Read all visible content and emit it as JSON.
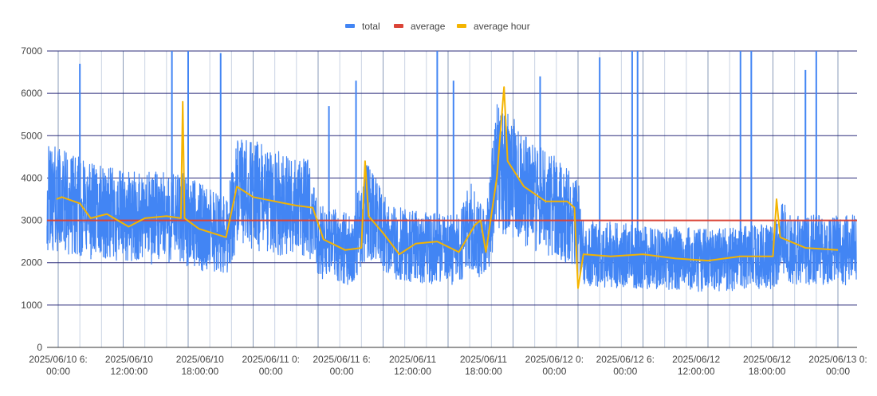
{
  "chart_data": {
    "type": "line",
    "legend": {
      "position": "top",
      "entries": [
        {
          "label": "total",
          "color": "#4285f4"
        },
        {
          "label": "average",
          "color": "#db4437"
        },
        {
          "label": "average hour",
          "color": "#f4b400"
        }
      ]
    },
    "ylim": [
      0,
      7000
    ],
    "yticks": [
      "0",
      "1000",
      "2000",
      "3000",
      "4000",
      "5000",
      "6000",
      "7000"
    ],
    "xlim": [
      "2025-06-10T06:00",
      "2025-06-13T06:00"
    ],
    "xticks": [
      {
        "line1": "2025/06/10 6:",
        "line2": "00:00"
      },
      {
        "line1": "2025/06/10",
        "line2": "12:00:00"
      },
      {
        "line1": "2025/06/10",
        "line2": "18:00:00"
      },
      {
        "line1": "2025/06/11 0:",
        "line2": "00:00"
      },
      {
        "line1": "2025/06/11 6:",
        "line2": "00:00"
      },
      {
        "line1": "2025/06/11",
        "line2": "12:00:00"
      },
      {
        "line1": "2025/06/11",
        "line2": "18:00:00"
      },
      {
        "line1": "2025/06/12 0:",
        "line2": "00:00"
      },
      {
        "line1": "2025/06/12 6:",
        "line2": "00:00"
      },
      {
        "line1": "2025/06/12",
        "line2": "12:00:00"
      },
      {
        "line1": "2025/06/12",
        "line2": "18:00:00"
      },
      {
        "line1": "2025/06/13 0:",
        "line2": "00:00"
      }
    ],
    "grid": "on",
    "series": [
      {
        "name": "total",
        "color": "#4285f4",
        "style": "dense noisy line",
        "base_levels": [
          [
            "2025-06-10T05:50",
            3500
          ],
          [
            "2025-06-10T08:00",
            3300
          ],
          [
            "2025-06-10T12:00",
            3050
          ],
          [
            "2025-06-10T15:00",
            3050
          ],
          [
            "2025-06-10T17:30",
            3050
          ],
          [
            "2025-06-10T19:00",
            2850
          ],
          [
            "2025-06-10T21:30",
            2650
          ],
          [
            "2025-06-10T22:30",
            3600
          ],
          [
            "2025-06-11T00:00",
            3600
          ],
          [
            "2025-06-11T03:00",
            3350
          ],
          [
            "2025-06-11T05:00",
            3300
          ],
          [
            "2025-06-11T06:00",
            2550
          ],
          [
            "2025-06-11T09:00",
            2300
          ],
          [
            "2025-06-11T10:30",
            3200
          ],
          [
            "2025-06-11T13:00",
            2450
          ],
          [
            "2025-06-11T16:00",
            2350
          ],
          [
            "2025-06-11T19:00",
            2300
          ],
          [
            "2025-06-11T20:00",
            2900
          ],
          [
            "2025-06-11T21:30",
            2300
          ],
          [
            "2025-06-11T22:30",
            4300
          ],
          [
            "2025-06-12T00:00",
            4000
          ],
          [
            "2025-06-12T01:30",
            3600
          ],
          [
            "2025-06-12T04:00",
            3300
          ],
          [
            "2025-06-12T06:00",
            2950
          ],
          [
            "2025-06-12T06:30",
            2200
          ],
          [
            "2025-06-12T12:00",
            2150
          ],
          [
            "2025-06-12T18:00",
            2050
          ],
          [
            "2025-06-13T00:00",
            2150
          ],
          [
            "2025-06-13T01:00",
            2550
          ],
          [
            "2025-06-13T02:00",
            2300
          ],
          [
            "2025-06-13T06:00",
            2300
          ]
        ],
        "spikes": [
          [
            "2025-06-10T08:00",
            6700
          ],
          [
            "2025-06-10T16:30",
            7000
          ],
          [
            "2025-06-10T18:00",
            7000
          ],
          [
            "2025-06-10T21:00",
            6950
          ],
          [
            "2025-06-11T07:00",
            5700
          ],
          [
            "2025-06-11T09:30",
            6300
          ],
          [
            "2025-06-11T10:30",
            4300
          ],
          [
            "2025-06-11T17:00",
            7000
          ],
          [
            "2025-06-11T18:30",
            6300
          ],
          [
            "2025-06-12T02:30",
            6400
          ],
          [
            "2025-06-12T08:00",
            6850
          ],
          [
            "2025-06-12T11:00",
            7000
          ],
          [
            "2025-06-12T11:30",
            7000
          ],
          [
            "2025-06-12T21:00",
            7000
          ],
          [
            "2025-06-12T22:00",
            7000
          ],
          [
            "2025-06-13T03:00",
            6550
          ],
          [
            "2025-06-13T04:00",
            7000
          ]
        ]
      },
      {
        "name": "average",
        "color": "#db4437",
        "points": [
          [
            "2025-06-10T05:50",
            3000
          ],
          [
            "2025-06-13T06:00",
            3000
          ]
        ]
      },
      {
        "name": "average hour",
        "color": "#f4b400",
        "points": [
          [
            "2025-06-10T05:50",
            3500
          ],
          [
            "2025-06-10T06:20",
            3550
          ],
          [
            "2025-06-10T08:00",
            3400
          ],
          [
            "2025-06-10T09:00",
            3050
          ],
          [
            "2025-06-10T10:30",
            3150
          ],
          [
            "2025-06-10T12:30",
            2850
          ],
          [
            "2025-06-10T14:00",
            3050
          ],
          [
            "2025-06-10T16:00",
            3100
          ],
          [
            "2025-06-10T17:20",
            3050
          ],
          [
            "2025-06-10T17:30",
            5800
          ],
          [
            "2025-06-10T17:40",
            3050
          ],
          [
            "2025-06-10T19:00",
            2800
          ],
          [
            "2025-06-10T21:30",
            2600
          ],
          [
            "2025-06-10T22:30",
            3800
          ],
          [
            "2025-06-11T00:00",
            3550
          ],
          [
            "2025-06-11T02:00",
            3450
          ],
          [
            "2025-06-11T04:00",
            3350
          ],
          [
            "2025-06-11T05:30",
            3300
          ],
          [
            "2025-06-11T06:30",
            2550
          ],
          [
            "2025-06-11T08:30",
            2300
          ],
          [
            "2025-06-11T10:00",
            2350
          ],
          [
            "2025-06-11T10:20",
            4400
          ],
          [
            "2025-06-11T10:40",
            3100
          ],
          [
            "2025-06-11T12:00",
            2700
          ],
          [
            "2025-06-11T13:30",
            2200
          ],
          [
            "2025-06-11T15:00",
            2450
          ],
          [
            "2025-06-11T17:00",
            2500
          ],
          [
            "2025-06-11T19:00",
            2250
          ],
          [
            "2025-06-11T20:30",
            2900
          ],
          [
            "2025-06-11T21:00",
            3000
          ],
          [
            "2025-06-11T21:30",
            2250
          ],
          [
            "2025-06-11T22:30",
            4000
          ],
          [
            "2025-06-11T23:10",
            6150
          ],
          [
            "2025-06-11T23:30",
            4400
          ],
          [
            "2025-06-12T01:00",
            3800
          ],
          [
            "2025-06-12T03:00",
            3450
          ],
          [
            "2025-06-12T05:00",
            3450
          ],
          [
            "2025-06-12T05:40",
            3300
          ],
          [
            "2025-06-12T06:00",
            1400
          ],
          [
            "2025-06-12T06:30",
            2200
          ],
          [
            "2025-06-12T09:00",
            2150
          ],
          [
            "2025-06-12T12:00",
            2200
          ],
          [
            "2025-06-12T15:00",
            2100
          ],
          [
            "2025-06-12T18:00",
            2050
          ],
          [
            "2025-06-12T21:00",
            2150
          ],
          [
            "2025-06-13T00:00",
            2150
          ],
          [
            "2025-06-13T00:20",
            3500
          ],
          [
            "2025-06-13T00:40",
            2600
          ],
          [
            "2025-06-13T03:00",
            2350
          ],
          [
            "2025-06-13T06:00",
            2300
          ]
        ]
      }
    ]
  }
}
